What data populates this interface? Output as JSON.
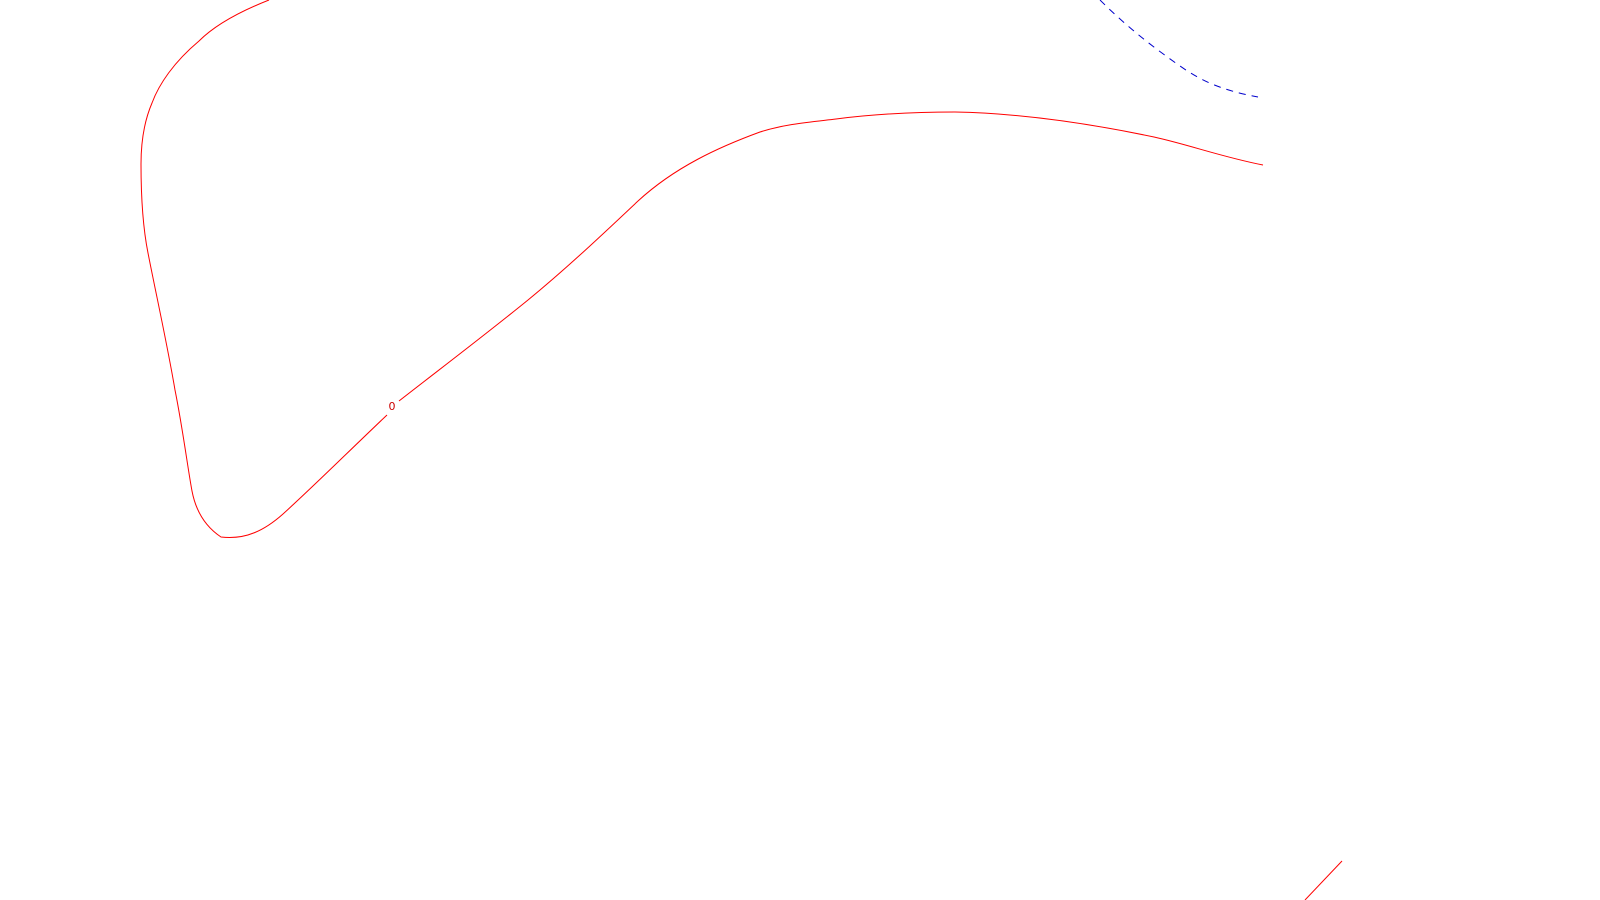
{
  "contours": {
    "main_label": "0",
    "solid_color": "#ff0000",
    "dashed_color": "#0000cc"
  }
}
